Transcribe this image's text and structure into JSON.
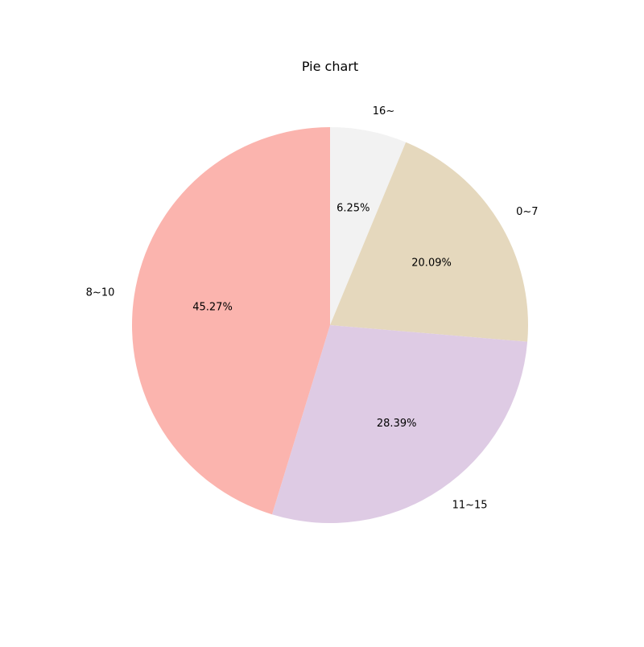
{
  "chart_data": {
    "type": "pie",
    "title": "Pie chart",
    "start_angle_deg": 90,
    "direction": "clockwise",
    "slices": [
      {
        "label": "16~",
        "value": 6.25,
        "pct_label": "6.25%",
        "color": "#f2f2f2"
      },
      {
        "label": "0~7",
        "value": 20.09,
        "pct_label": "20.09%",
        "color": "#e5d8bd"
      },
      {
        "label": "11~15",
        "value": 28.39,
        "pct_label": "28.39%",
        "color": "#decbe4"
      },
      {
        "label": "8~10",
        "value": 45.27,
        "pct_label": "45.27%",
        "color": "#fbb4ae"
      }
    ]
  }
}
